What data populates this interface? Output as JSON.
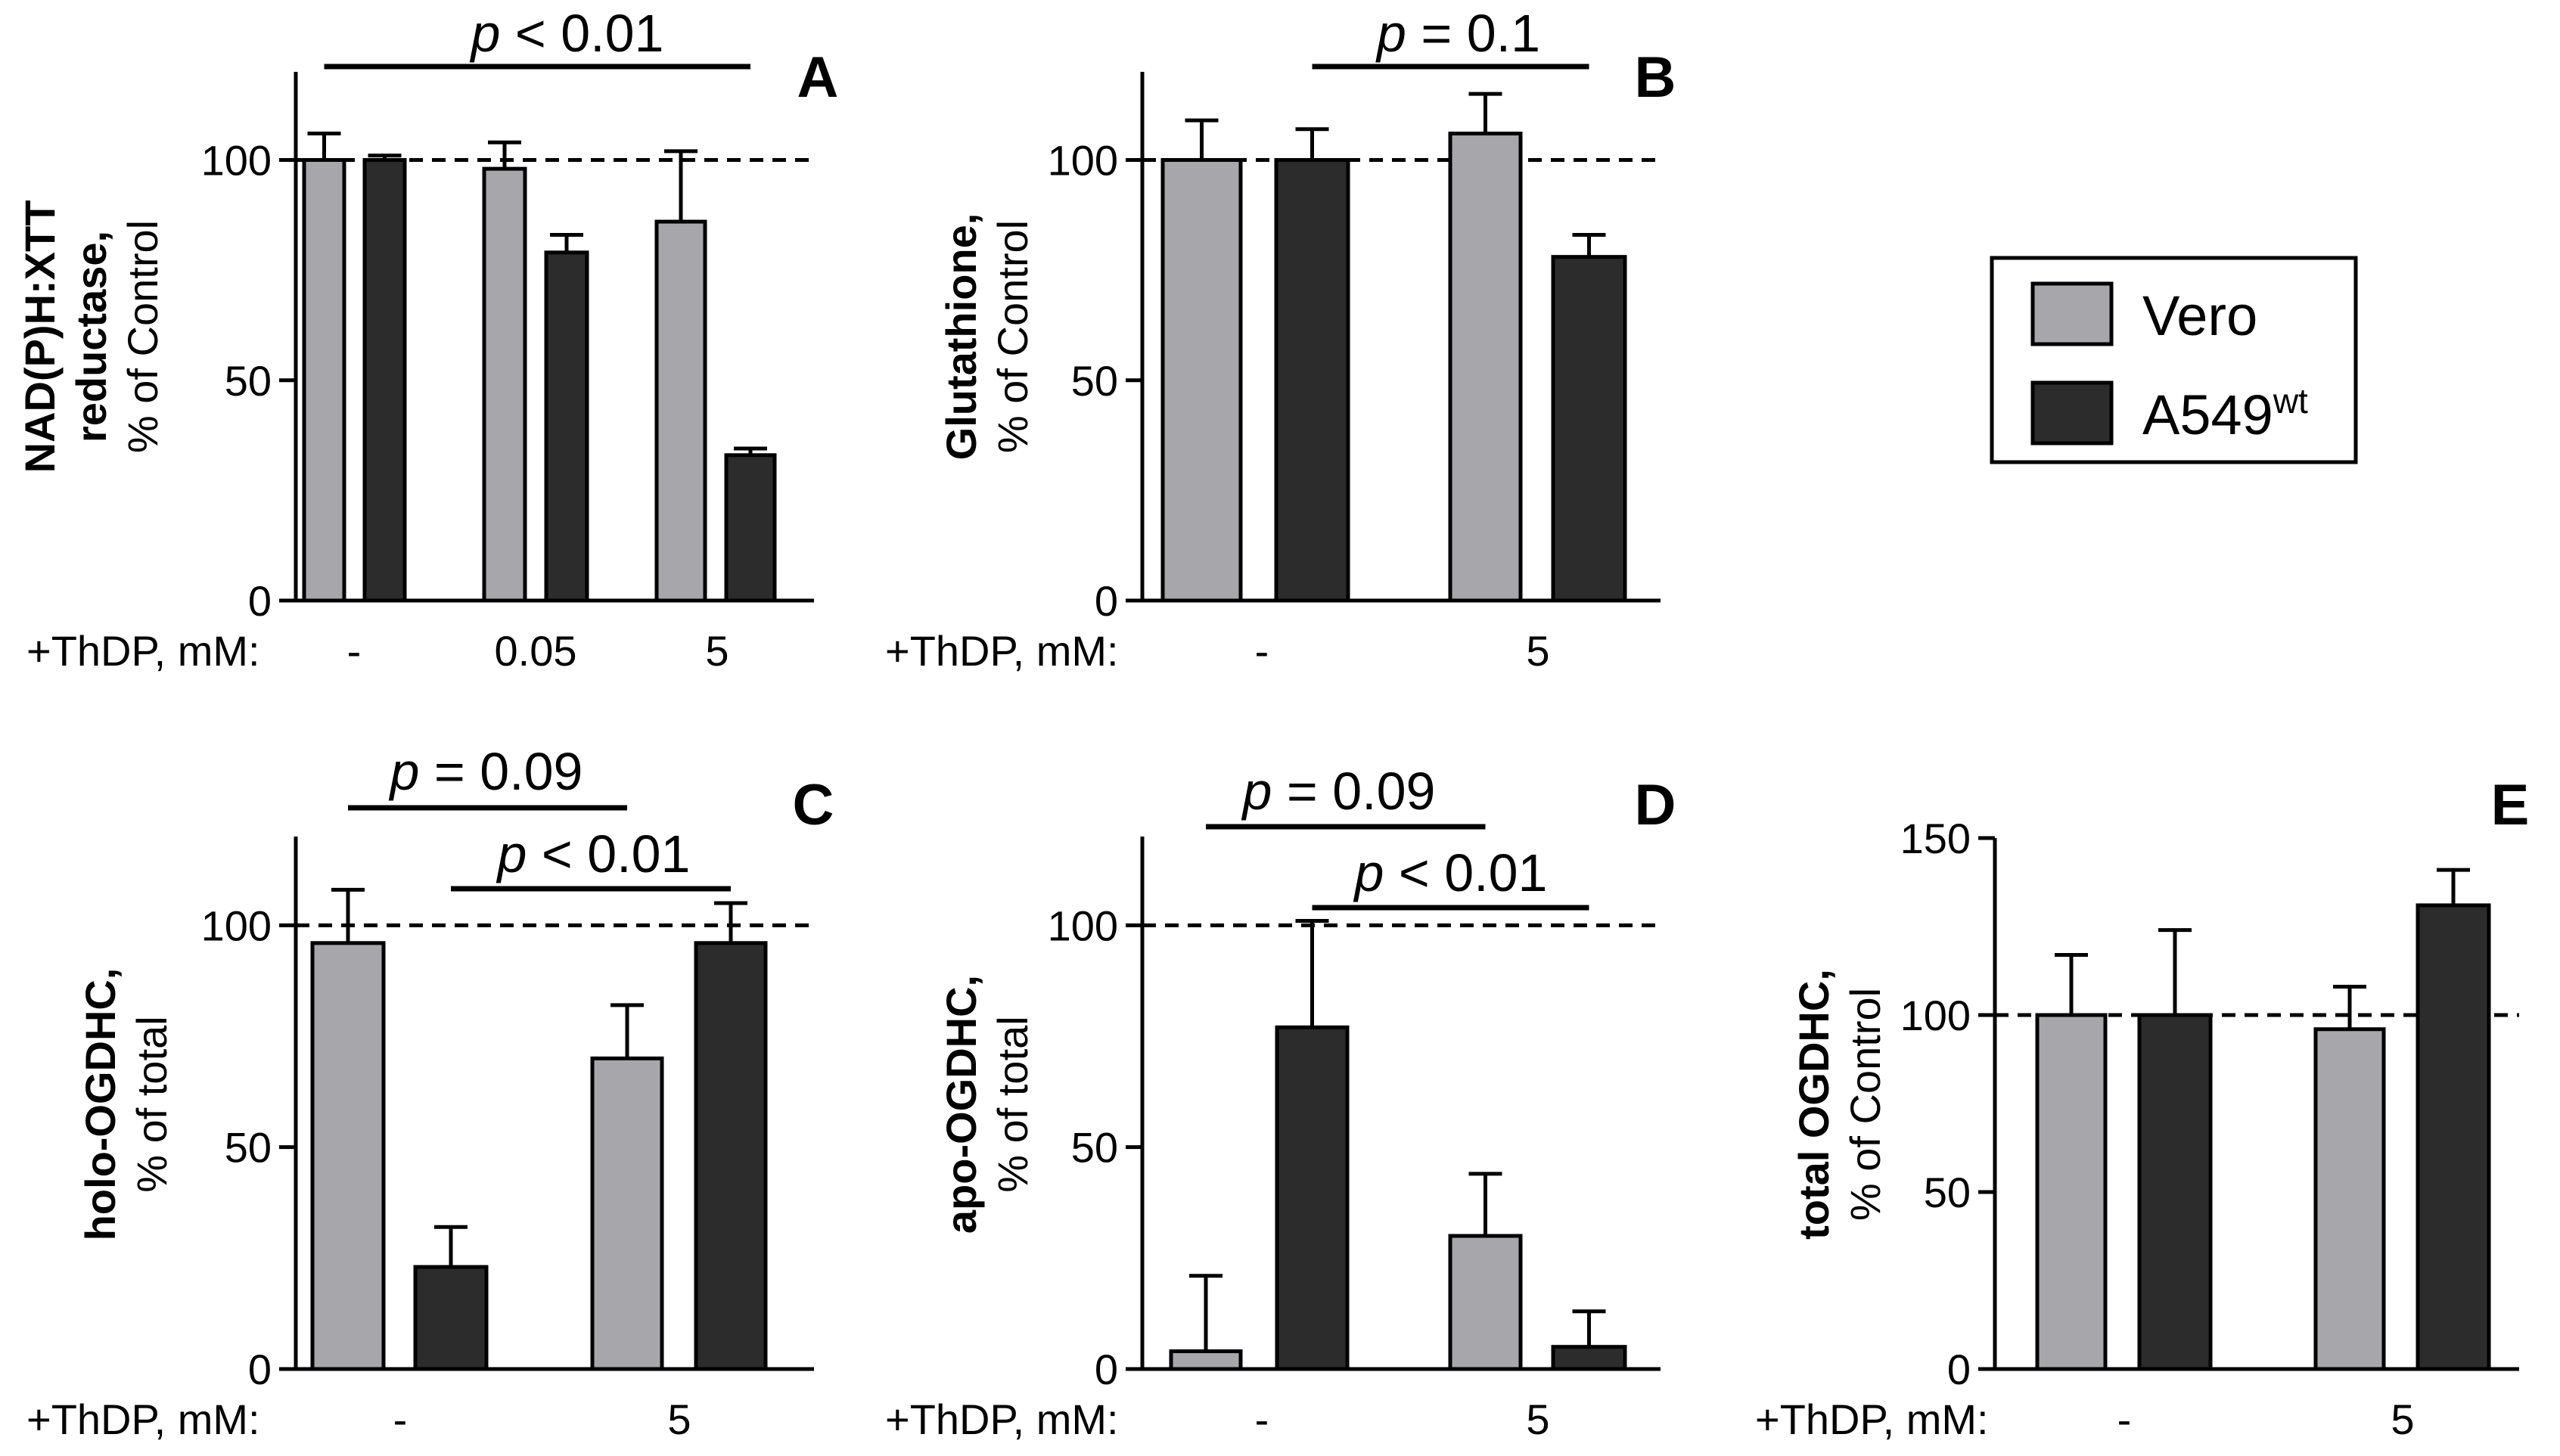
{
  "chart_data": [
    {
      "panel": "A",
      "type": "bar",
      "ylabel_lines": [
        "NAD(P)H:XTT",
        "reductase,",
        "% of Control"
      ],
      "ylabel_bold": [
        true,
        true,
        false
      ],
      "ylim": [
        0,
        120
      ],
      "yticks": [
        0,
        50,
        100
      ],
      "reference_line": 100,
      "x_prefix": "+ThDP, mM:",
      "categories": [
        "-",
        "0.05",
        "5"
      ],
      "series": [
        {
          "name": "Vero",
          "values": [
            100,
            98,
            86
          ],
          "errors": [
            6,
            6,
            16
          ]
        },
        {
          "name": "A549wt",
          "values": [
            100,
            79,
            33
          ],
          "errors": [
            1,
            4,
            1.5
          ]
        }
      ],
      "significance": [
        {
          "label_p": "p",
          "label_rest": " < 0.01",
          "from": [
            0,
            "Vero"
          ],
          "to": [
            2,
            "A549wt"
          ]
        }
      ]
    },
    {
      "panel": "B",
      "type": "bar",
      "ylabel_lines": [
        "Glutathione,",
        "% of Control"
      ],
      "ylabel_bold": [
        true,
        false
      ],
      "ylim": [
        0,
        120
      ],
      "yticks": [
        0,
        50,
        100
      ],
      "reference_line": 100,
      "x_prefix": "+ThDP, mM:",
      "categories": [
        "-",
        "5"
      ],
      "series": [
        {
          "name": "Vero",
          "values": [
            100,
            106
          ],
          "errors": [
            9,
            9
          ]
        },
        {
          "name": "A549wt",
          "values": [
            100,
            78
          ],
          "errors": [
            7,
            5
          ]
        }
      ],
      "significance": [
        {
          "label_p": "p",
          "label_rest": " = 0.1",
          "from": [
            0,
            "A549wt"
          ],
          "to": [
            1,
            "A549wt"
          ]
        }
      ]
    },
    {
      "panel": "C",
      "type": "bar",
      "ylabel_lines": [
        "holo-OGDHC,",
        "% of total"
      ],
      "ylabel_bold": [
        true,
        false
      ],
      "ylim": [
        0,
        120
      ],
      "yticks": [
        0,
        50,
        100
      ],
      "reference_line": 100,
      "x_prefix": "+ThDP, mM:",
      "categories": [
        "-",
        "5"
      ],
      "series": [
        {
          "name": "Vero",
          "values": [
            96,
            70
          ],
          "errors": [
            12,
            12
          ]
        },
        {
          "name": "A549wt",
          "values": [
            23,
            96
          ],
          "errors": [
            9,
            9
          ]
        }
      ],
      "significance": [
        {
          "label_p": "p",
          "label_rest": " = 0.09",
          "from": [
            0,
            "Vero"
          ],
          "to": [
            1,
            "Vero"
          ]
        },
        {
          "label_p": "p",
          "label_rest": " < 0.01",
          "from": [
            0,
            "A549wt"
          ],
          "to": [
            1,
            "A549wt"
          ]
        }
      ]
    },
    {
      "panel": "D",
      "type": "bar",
      "ylabel_lines": [
        "apo-OGDHC,",
        "% of total"
      ],
      "ylabel_bold": [
        true,
        false
      ],
      "ylim": [
        0,
        120
      ],
      "yticks": [
        0,
        50,
        100
      ],
      "reference_line": 100,
      "x_prefix": "+ThDP, mM:",
      "categories": [
        "-",
        "5"
      ],
      "series": [
        {
          "name": "Vero",
          "values": [
            4,
            30
          ],
          "errors": [
            17,
            14
          ]
        },
        {
          "name": "A549wt",
          "values": [
            77,
            5
          ],
          "errors": [
            24,
            8
          ]
        }
      ],
      "significance": [
        {
          "label_p": "p",
          "label_rest": " = 0.09",
          "from": [
            0,
            "Vero"
          ],
          "to": [
            1,
            "Vero"
          ]
        },
        {
          "label_p": "p",
          "label_rest": " < 0.01",
          "from": [
            0,
            "A549wt"
          ],
          "to": [
            1,
            "A549wt"
          ]
        }
      ]
    },
    {
      "panel": "E",
      "type": "bar",
      "ylabel_lines": [
        "total OGDHC,",
        "% of Control"
      ],
      "ylabel_bold": [
        true,
        false
      ],
      "ylim": [
        0,
        150
      ],
      "yticks": [
        0,
        50,
        100,
        150
      ],
      "reference_line": 100,
      "x_prefix": "+ThDP, mM:",
      "categories": [
        "-",
        "5"
      ],
      "series": [
        {
          "name": "Vero",
          "values": [
            100,
            96
          ],
          "errors": [
            17,
            12
          ]
        },
        {
          "name": "A549wt",
          "values": [
            100,
            131
          ],
          "errors": [
            24,
            10
          ]
        }
      ],
      "significance": []
    }
  ],
  "legend": {
    "items": [
      {
        "label": "Vero",
        "superscript": "",
        "color": "#a7a7ab"
      },
      {
        "label": "A549",
        "superscript": "wt",
        "color": "#2c2c2c"
      }
    ]
  },
  "colors": {
    "Vero": "#a7a7ab",
    "A549wt": "#2c2c2c"
  }
}
